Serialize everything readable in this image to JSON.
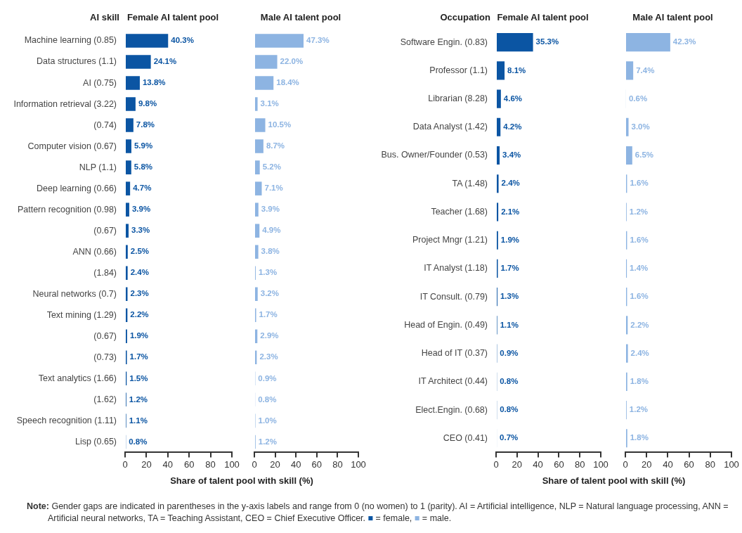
{
  "chart_data": [
    {
      "type": "bar",
      "orientation": "horizontal",
      "title": "Female AI talent pool",
      "ylabel": "AI skill",
      "xlabel": "Share of talent pool with skill (%)",
      "color": "#0b55a3",
      "categories": [
        "Machine learning (0.85)",
        "Data structures (1.1)",
        "AI (0.75)",
        "Information retrieval (3.22)",
        "(0.74)",
        "Computer vision (0.67)",
        "NLP (1.1)",
        "Deep learning (0.66)",
        "Pattern recognition (0.98)",
        "(0.67)",
        "ANN (0.66)",
        "(1.84)",
        "Neural networks (0.7)",
        "Text mining (1.29)",
        "(0.67)",
        "(0.73)",
        "Text analytics (1.66)",
        "(1.62)",
        "Speech recognition (1.11)",
        "Lisp (0.65)"
      ],
      "values": [
        40.3,
        24.1,
        13.8,
        9.8,
        7.8,
        5.9,
        5.8,
        4.7,
        3.9,
        3.3,
        2.5,
        2.4,
        2.3,
        2.2,
        1.9,
        1.7,
        1.5,
        1.2,
        1.1,
        0.8
      ],
      "value_labels": [
        "40.3%",
        "24.1%",
        "13.8%",
        "9.8%",
        "7.8%",
        "5.9%",
        "5.8%",
        "4.7%",
        "3.9%",
        "3.3%",
        "2.5%",
        "2.4%",
        "2.3%",
        "2.2%",
        "1.9%",
        "1.7%",
        "1.5%",
        "1.2%",
        "1.1%",
        "0.8%"
      ],
      "xlim": [
        0,
        100
      ],
      "xticks": [
        0,
        20,
        40,
        60,
        80,
        100
      ],
      "grid": false,
      "annotations": [
        "Note: Gender gaps are indicated in parentheses in the y-axis labels and  range from 0 (no women) to 1 (parity).  AI = Artificial intelligence, NLP = Natural language processing, ANN = Artificial neural networks, TA = Teaching Assistant, CEO = Chief Executive Officer. ■ = female, ■ = male."
      ]
    },
    {
      "type": "bar",
      "orientation": "horizontal",
      "title": "Male AI talent pool",
      "color": "#8db4e2",
      "tick_labels": "x",
      "categories": [
        null,
        null,
        null,
        null,
        null,
        null,
        null,
        null,
        null,
        null,
        null,
        null,
        null,
        null,
        null,
        null,
        null,
        null,
        null,
        null
      ],
      "values": [
        47.3,
        22.0,
        18.4,
        3.1,
        10.5,
        8.7,
        5.2,
        7.1,
        3.9,
        4.9,
        3.8,
        1.3,
        3.2,
        1.7,
        2.9,
        2.3,
        0.9,
        0.8,
        1.0,
        1.2
      ],
      "value_labels": [
        "47.3%",
        "22.0%",
        "18.4%",
        "3.1%",
        "10.5%",
        "8.7%",
        "5.2%",
        "7.1%",
        "3.9%",
        "4.9%",
        "3.8%",
        "1.3%",
        "3.2%",
        "1.7%",
        "2.9%",
        "2.3%",
        "0.9%",
        "0.8%",
        "1.0%",
        "1.2%"
      ],
      "xlim": [
        0,
        100
      ],
      "xticks": [
        0,
        20,
        40,
        60,
        80,
        100
      ],
      "grid": false
    },
    {
      "type": "bar",
      "orientation": "horizontal",
      "title": "Female AI talent pool",
      "ylabel": "Occupation",
      "xlabel": "Share of talent pool with skill (%)",
      "color": "#0b55a3",
      "categories": [
        "Software Engin. (0.83)",
        "Professor (1.1)",
        "Librarian (8.28)",
        "Data Analyst (1.42)",
        "Bus. Owner/Founder (0.53)",
        "TA (1.48)",
        "Teacher (1.68)",
        "Project Mngr (1.21)",
        "IT Analyst (1.18)",
        "IT Consult. (0.79)",
        "Head of Engin. (0.49)",
        "Head of IT (0.37)",
        "IT Architect (0.44)",
        "Elect.Engin. (0.68)",
        "CEO (0.41)"
      ],
      "values": [
        35.3,
        8.1,
        4.6,
        4.2,
        3.4,
        2.4,
        2.1,
        1.9,
        1.7,
        1.3,
        1.1,
        0.9,
        0.8,
        0.8,
        0.7
      ],
      "value_labels": [
        "35.3%",
        "8.1%",
        "4.6%",
        "4.2%",
        "3.4%",
        "2.4%",
        "2.1%",
        "1.9%",
        "1.7%",
        "1.3%",
        "1.1%",
        "0.9%",
        "0.8%",
        "0.8%",
        "0.7%"
      ],
      "xlim": [
        0,
        100
      ],
      "xticks": [
        0,
        20,
        40,
        60,
        80,
        100
      ],
      "grid": false
    },
    {
      "type": "bar",
      "orientation": "horizontal",
      "title": "Male AI talent pool",
      "color": "#8db4e2",
      "tick_labels": "x",
      "categories": [
        null,
        null,
        null,
        null,
        null,
        null,
        null,
        null,
        null,
        null,
        null,
        null,
        null,
        null,
        null
      ],
      "values": [
        42.3,
        7.4,
        0.6,
        3.0,
        6.5,
        1.6,
        1.2,
        1.6,
        1.4,
        1.6,
        2.2,
        2.4,
        1.8,
        1.2,
        1.8
      ],
      "value_labels": [
        "42.3%",
        "7.4%",
        "0.6%",
        "3.0%",
        "6.5%",
        "1.6%",
        "1.2%",
        "1.6%",
        "1.4%",
        "1.6%",
        "2.2%",
        "2.4%",
        "1.8%",
        "1.2%",
        "1.8%"
      ],
      "xlim": [
        0,
        100
      ],
      "xticks": [
        0,
        20,
        40,
        60,
        80,
        100
      ],
      "grid": false
    }
  ]
}
